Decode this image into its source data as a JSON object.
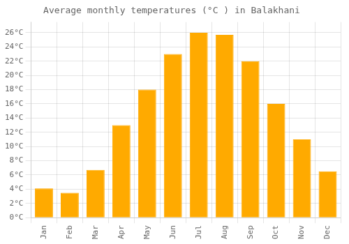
{
  "chart_data": {
    "type": "bar",
    "title": "Average monthly temperatures (°C ) in Balakhani",
    "categories": [
      "Jan",
      "Feb",
      "Mar",
      "Apr",
      "May",
      "Jun",
      "Jul",
      "Aug",
      "Sep",
      "Oct",
      "Nov",
      "Dec"
    ],
    "values": [
      4.1,
      3.5,
      6.7,
      13.0,
      18.0,
      23.0,
      26.0,
      25.7,
      22.0,
      16.0,
      11.0,
      6.5
    ],
    "color": "#FFAA00",
    "ylim": [
      0,
      27.5
    ],
    "yticks": [
      {
        "value": 0,
        "label": "0°C"
      },
      {
        "value": 2,
        "label": "2°C"
      },
      {
        "value": 4,
        "label": "4°C"
      },
      {
        "value": 6,
        "label": "6°C"
      },
      {
        "value": 8,
        "label": "8°C"
      },
      {
        "value": 10,
        "label": "10°C"
      },
      {
        "value": 12,
        "label": "12°C"
      },
      {
        "value": 14,
        "label": "14°C"
      },
      {
        "value": 16,
        "label": "16°C"
      },
      {
        "value": 18,
        "label": "18°C"
      },
      {
        "value": 20,
        "label": "20°C"
      },
      {
        "value": 22,
        "label": "22°C"
      },
      {
        "value": 24,
        "label": "24°C"
      },
      {
        "value": 26,
        "label": "26°C"
      }
    ],
    "grid": true
  }
}
